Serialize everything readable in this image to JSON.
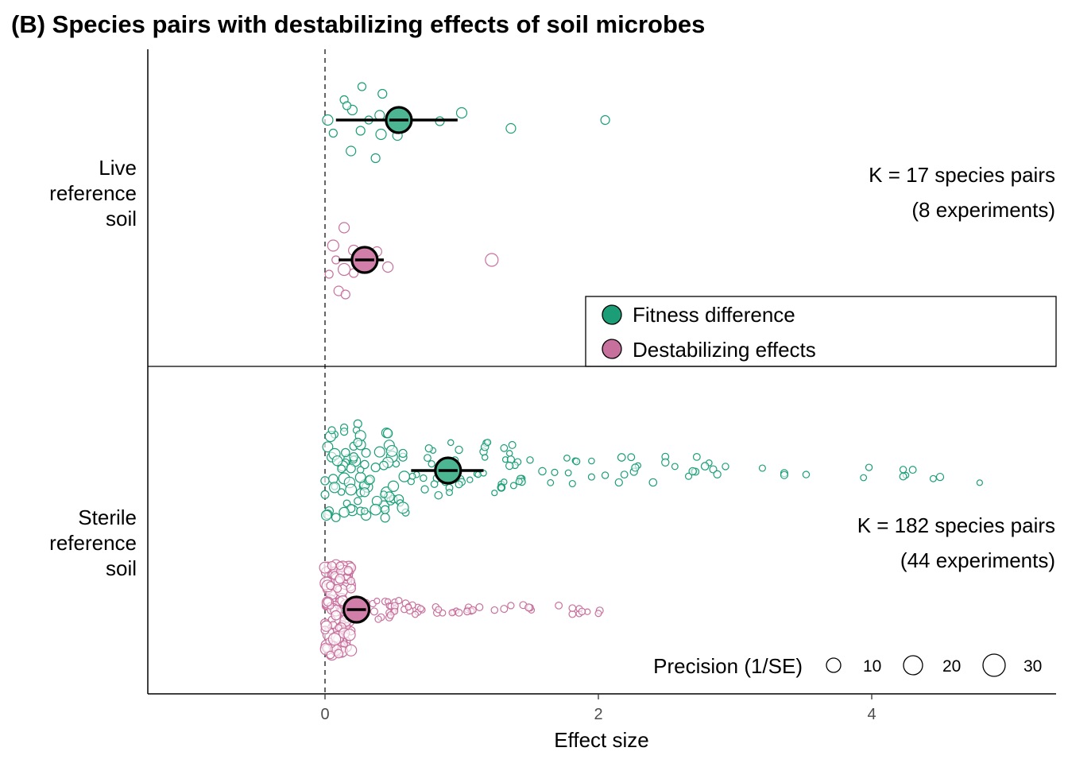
{
  "chart_data": {
    "type": "scatter",
    "title": "(B) Species pairs with destabilizing effects of soil microbes",
    "xlabel": "Effect size",
    "ylabel": "",
    "xlim": [
      -1.3,
      5.3
    ],
    "x_ticks": [
      "0",
      "2",
      "4"
    ],
    "x_tick_values": [
      0,
      2,
      4
    ],
    "reference_line_x": 0,
    "grid": false,
    "colors": {
      "fitness": "#1b9e77",
      "destab": "#c8709d",
      "fitness_mean": "#4cb591",
      "destab_mean": "#d17fa8"
    },
    "legend": {
      "position": "middle-right",
      "entries": [
        {
          "label": "Fitness difference",
          "color": "#1b9e77"
        },
        {
          "label": "Destabilizing effects",
          "color": "#c8709d"
        }
      ]
    },
    "size_legend": {
      "title": "Precision (1/SE)",
      "position": "bottom-right",
      "values": [
        10,
        20,
        30
      ],
      "labels": [
        "10",
        "20",
        "30"
      ]
    },
    "panels": [
      {
        "label_lines": [
          "Live",
          "reference",
          "soil"
        ],
        "annotation_lines": [
          "K = 17 species pairs",
          "(8 experiments)"
        ],
        "series": [
          {
            "name": "Fitness difference",
            "mean": 0.54,
            "ci": [
              0.08,
              0.97
            ],
            "points": [
              [
                0.27,
                -1.4,
                8
              ],
              [
                0.42,
                -1.1,
                9
              ],
              [
                0.14,
                -0.85,
                8
              ],
              [
                0.2,
                -0.42,
                10
              ],
              [
                0.16,
                -0.6,
                8
              ],
              [
                0.4,
                -0.2,
                10
              ],
              [
                1.0,
                -0.3,
                11
              ],
              [
                0.02,
                0.0,
                11
              ],
              [
                0.32,
                0.0,
                8
              ],
              [
                0.56,
                -0.1,
                8
              ],
              [
                2.05,
                0.0,
                9
              ],
              [
                0.84,
                0.05,
                9
              ],
              [
                1.36,
                0.35,
                10
              ],
              [
                0.06,
                0.55,
                8
              ],
              [
                0.26,
                0.45,
                9
              ],
              [
                0.41,
                0.6,
                11
              ],
              [
                0.53,
                0.65,
                10
              ],
              [
                0.19,
                1.3,
                10
              ],
              [
                0.37,
                1.6,
                9
              ]
            ]
          },
          {
            "name": "Destabilizing effects",
            "mean": 0.29,
            "ci": [
              0.1,
              0.43
            ],
            "points": [
              [
                0.14,
                -1.35,
                11
              ],
              [
                0.06,
                -0.6,
                12
              ],
              [
                0.21,
                -0.4,
                11
              ],
              [
                0.38,
                -0.35,
                10
              ],
              [
                0.08,
                0.0,
                8
              ],
              [
                0.27,
                -0.1,
                10
              ],
              [
                0.32,
                0.2,
                12
              ],
              [
                1.22,
                0.0,
                14
              ],
              [
                0.46,
                0.3,
                11
              ],
              [
                0.14,
                0.4,
                13
              ],
              [
                0.03,
                0.6,
                8
              ],
              [
                0.21,
                0.55,
                9
              ],
              [
                0.1,
                1.3,
                10
              ],
              [
                0.15,
                1.45,
                9
              ]
            ]
          }
        ]
      },
      {
        "label_lines": [
          "Sterile",
          "reference",
          "soil"
        ],
        "annotation_lines": [
          "K = 182 species pairs",
          "(44 experiments)"
        ],
        "series": [
          {
            "name": "Fitness difference",
            "mean": 0.9,
            "ci": [
              0.63,
              1.16
            ],
            "points": []
          },
          {
            "name": "Destabilizing effects",
            "mean": 0.23,
            "ci": [
              0.18,
              0.28
            ],
            "points": []
          }
        ]
      }
    ]
  }
}
